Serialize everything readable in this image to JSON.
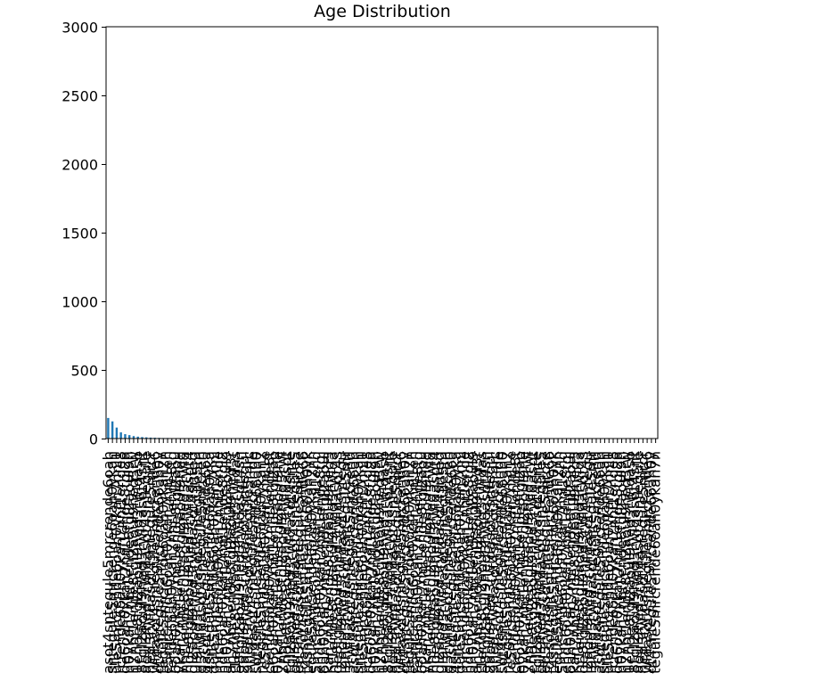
{
  "chart_data": {
    "type": "bar",
    "title": "Age Distribution",
    "xlabel": "",
    "ylabel": "",
    "ylim": [
      0,
      3000
    ],
    "yticks": [
      0,
      500,
      1000,
      1500,
      2000,
      2500,
      3000
    ],
    "ytick_labels": [
      "0",
      "500",
      "1000",
      "1500",
      "2000",
      "2500",
      "3000"
    ],
    "grid": false,
    "legend": "none",
    "bar_color": "#1f77b4",
    "n_categories": 130,
    "values": [
      150,
      125,
      80,
      45,
      32,
      25,
      18,
      14,
      11,
      9,
      7,
      6,
      5,
      4,
      4,
      3,
      3,
      2,
      2,
      2,
      1,
      1,
      1,
      1,
      1,
      1,
      1,
      1,
      1,
      1,
      1,
      1,
      1,
      1,
      1,
      1,
      1,
      1,
      1,
      1,
      1,
      1,
      1,
      1,
      1,
      1,
      1,
      1,
      1,
      1,
      1,
      1,
      1,
      1,
      1,
      1,
      1,
      1,
      1,
      1,
      1,
      1,
      1,
      1,
      1,
      1,
      1,
      1,
      1,
      1,
      1,
      1,
      1,
      1,
      1,
      1,
      1,
      1,
      1,
      1,
      1,
      1,
      1,
      1,
      1,
      1,
      1,
      1,
      1,
      1,
      1,
      1,
      1,
      1,
      1,
      1,
      1,
      1,
      1,
      1,
      1,
      1,
      1,
      1,
      1,
      1,
      1,
      1,
      1,
      1,
      1,
      1,
      1,
      1,
      1,
      1,
      1,
      1,
      1,
      1,
      1,
      1,
      1,
      1,
      1,
      1,
      1,
      1,
      1,
      1
    ],
    "tick_labels_note": ""
  }
}
